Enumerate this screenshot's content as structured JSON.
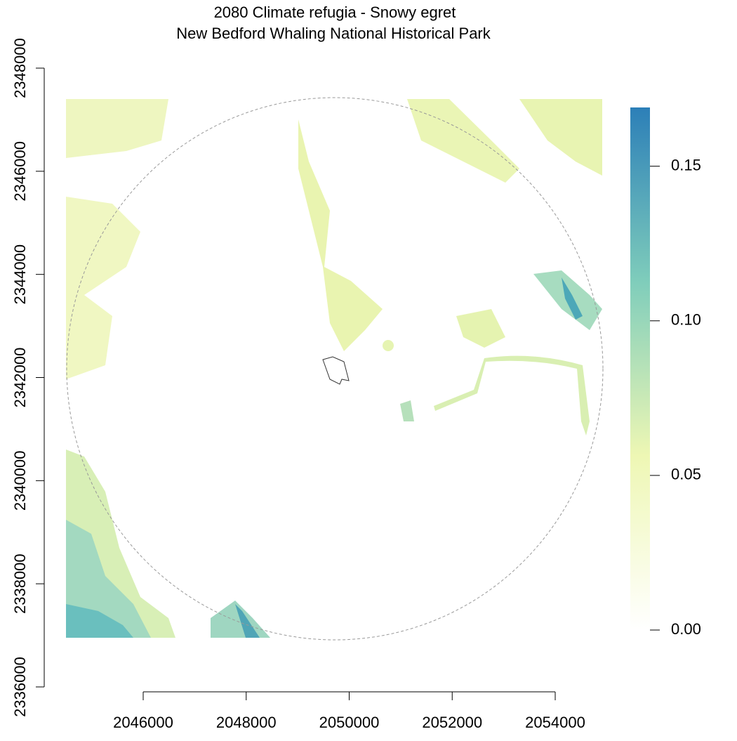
{
  "chart_data": {
    "type": "raster",
    "title": "2080 Climate refugia - Snowy egret",
    "subtitle": "New Bedford Whaling National Historical Park",
    "xlim": [
      2046000,
      2054000
    ],
    "xticks": [
      2046000,
      2048000,
      2050000,
      2052000,
      2054000
    ],
    "ylim": [
      2336000,
      2348000
    ],
    "yticks": [
      2336000,
      2338000,
      2340000,
      2342000,
      2344000,
      2346000,
      2348000
    ],
    "colorbar": {
      "range": [
        0,
        0.169
      ],
      "ticks": [
        {
          "value": 0,
          "label": "0.00"
        },
        {
          "value": 0.05,
          "label": "0.05"
        },
        {
          "value": 0.1,
          "label": "0.10"
        },
        {
          "value": 0.15,
          "label": "0.15"
        }
      ],
      "colors": [
        "#ffffff",
        "#eef7b4",
        "#7fcdbb",
        "#2c7fb8"
      ]
    }
  }
}
